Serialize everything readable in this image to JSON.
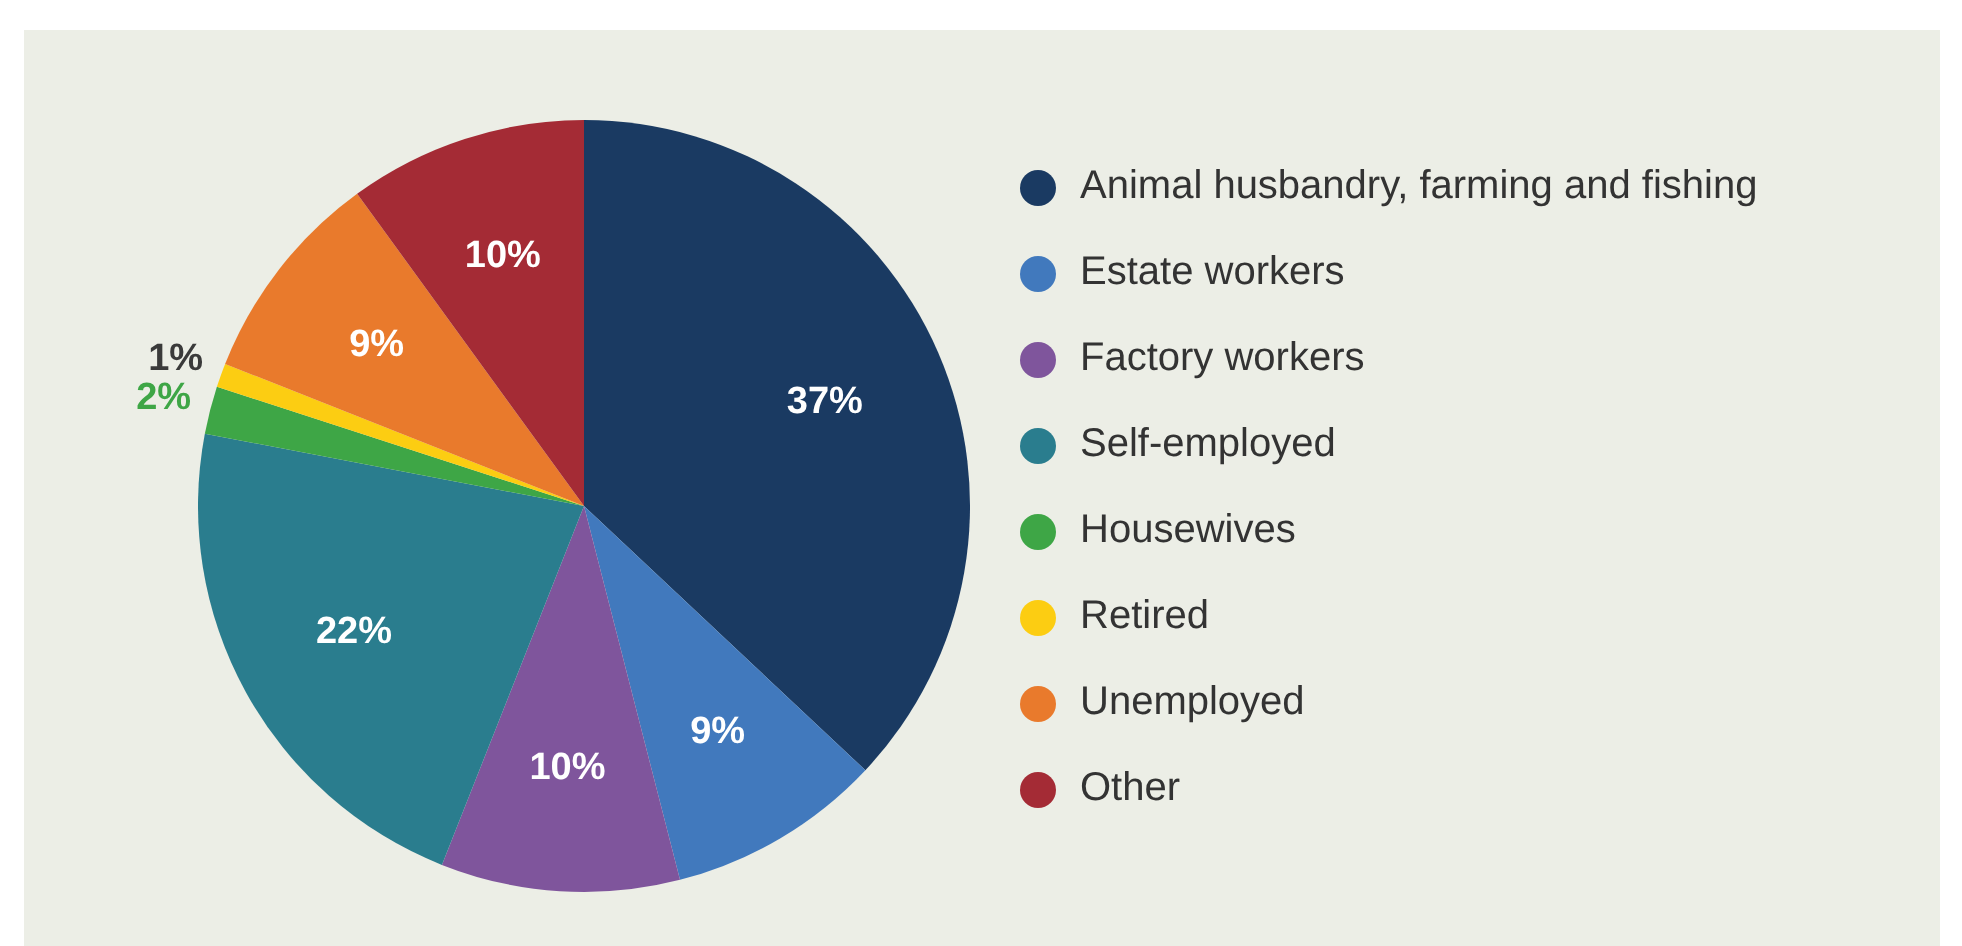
{
  "chart_data": {
    "type": "pie",
    "categories": [
      "Animal husbandry, farming and fishing",
      "Estate workers",
      "Factory workers",
      "Self-employed",
      "Housewives",
      "Retired",
      "Unemployed",
      "Other"
    ],
    "values": [
      37,
      9,
      10,
      22,
      2,
      1,
      9,
      10
    ],
    "colors": [
      "#1a3a62",
      "#4179bd",
      "#7f559c",
      "#2a7d8e",
      "#3ea646",
      "#fccd12",
      "#e97a2c",
      "#a42b35"
    ],
    "value_labels": [
      "37%",
      "9%",
      "10%",
      "22%",
      "2%",
      "1%",
      "9%",
      "10%"
    ],
    "legend": "right"
  }
}
